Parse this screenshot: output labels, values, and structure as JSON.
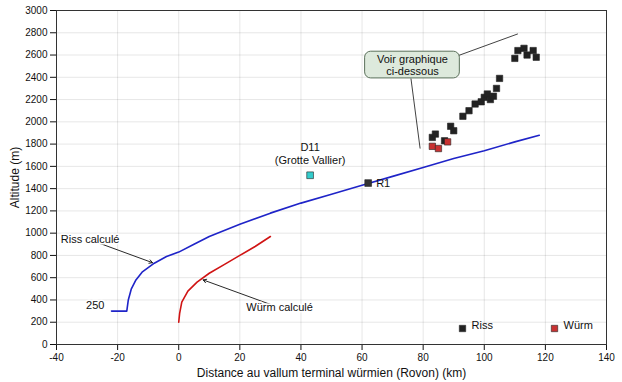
{
  "chart_data": {
    "type": "line",
    "x_label": "Distance au vallum terminal würmien (Rovon) (km)",
    "y_label": "Altitude (m)",
    "xlim": [
      -40,
      140
    ],
    "xticks": [
      -40,
      -20,
      0,
      20,
      40,
      60,
      80,
      100,
      120,
      140
    ],
    "ylim": [
      0,
      3000
    ],
    "yticks": [
      0,
      200,
      400,
      600,
      800,
      1000,
      1200,
      1400,
      1600,
      1800,
      2000,
      2200,
      2400,
      2600,
      2800,
      3000
    ],
    "grid": true,
    "legend": "bottom-right",
    "series": [
      {
        "name": "Riss calculé",
        "type": "line",
        "color": "#1f24c8",
        "line_style": "solid",
        "x": [
          -22,
          -17,
          -16.5,
          -15.5,
          -14,
          -12,
          -8,
          -4,
          0,
          5,
          10,
          20,
          30,
          40,
          50,
          60,
          70,
          80,
          90,
          100,
          110,
          118
        ],
        "values": [
          300,
          300,
          400,
          500,
          580,
          650,
          730,
          790,
          830,
          900,
          970,
          1080,
          1180,
          1270,
          1350,
          1430,
          1510,
          1590,
          1670,
          1740,
          1820,
          1880
        ]
      },
      {
        "name": "Würm calculé",
        "type": "line",
        "color": "#d01414",
        "line_style": "solid",
        "x": [
          0,
          0.3,
          1,
          3,
          6,
          10,
          15,
          20,
          25,
          30
        ],
        "values": [
          200,
          280,
          380,
          480,
          560,
          640,
          720,
          800,
          880,
          970
        ]
      },
      {
        "name": "Riss",
        "type": "scatter",
        "marker": "square",
        "color": "#222222",
        "x": [
          83,
          84,
          87,
          89,
          90,
          93,
          95,
          97,
          99,
          100,
          101,
          102,
          103,
          104,
          105,
          110,
          111,
          113,
          114,
          116,
          117
        ],
        "values": [
          1860,
          1890,
          1830,
          1960,
          1920,
          2050,
          2100,
          2160,
          2180,
          2220,
          2250,
          2200,
          2230,
          2300,
          2390,
          2570,
          2640,
          2660,
          2600,
          2640,
          2580
        ]
      },
      {
        "name": "Würm",
        "type": "scatter",
        "marker": "square",
        "color": "#c83232",
        "x": [
          83,
          85,
          88
        ],
        "values": [
          1780,
          1760,
          1820
        ]
      }
    ],
    "points": [
      {
        "label": "D11",
        "sublabel": "(Grotte Vallier)",
        "x": 43,
        "y": 1520,
        "color": "#33cccc",
        "marker": "square"
      },
      {
        "label": "R1",
        "x": 62,
        "y": 1450,
        "color": "#333333",
        "marker": "square"
      }
    ],
    "annotations": [
      {
        "text": "250"
      },
      {
        "text": "Voir graphique\nci-dessous"
      }
    ]
  }
}
